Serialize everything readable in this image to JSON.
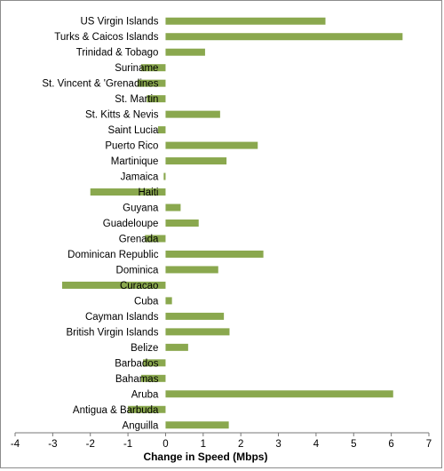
{
  "chart_data": {
    "type": "bar",
    "orientation": "horizontal",
    "title": "",
    "xlabel": "Change in Speed (Mbps)",
    "ylabel": "",
    "xlim": [
      -4,
      7
    ],
    "xticks": [
      "-4",
      "-3",
      "-2",
      "-1",
      "0",
      "1",
      "2",
      "3",
      "4",
      "5",
      "6",
      "7"
    ],
    "bar_color": "#8aa84e",
    "grid": false,
    "legend": "none",
    "categories": [
      "US Virgin Islands",
      "Turks & Caicos Islands",
      "Trinidad & Tobago",
      "Suriname",
      "St. Vincent & 'Grenadines",
      "St. Martin",
      "St. Kitts & Nevis",
      "Saint Lucia",
      "Puerto Rico",
      "Martinique",
      "Jamaica",
      "Haiti",
      "Guyana",
      "Guadeloupe",
      "Grenada",
      "Dominican Republic",
      "Dominica",
      "Curacao",
      "Cuba",
      "Cayman Islands",
      "British Virgin Islands",
      "Belize",
      "Barbados",
      "Bahamas",
      "Aruba",
      "Antigua & Barbuda",
      "Anguilla"
    ],
    "values": [
      4.25,
      6.3,
      1.05,
      -0.65,
      -0.75,
      -0.5,
      1.45,
      -0.2,
      2.45,
      1.62,
      -0.05,
      -2.0,
      0.4,
      0.88,
      -0.55,
      2.6,
      1.4,
      -2.75,
      0.17,
      1.55,
      1.7,
      0.6,
      -0.6,
      -0.65,
      6.05,
      -1.0,
      1.68
    ]
  }
}
